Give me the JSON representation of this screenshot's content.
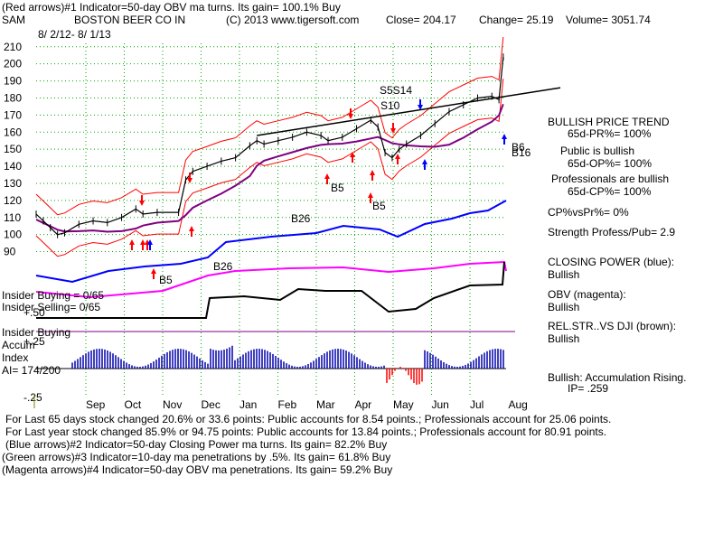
{
  "header": {
    "line1": "(Red arrows)#1 Indicator=50-day OBV ma turns.  Its gain= 100.1% Buy",
    "ticker": "SAM",
    "company": "BOSTON BEER CO IN",
    "copyright": "(C) 2013 www.tigersoft.com",
    "close": "Close=  204.17",
    "change": "Change= 25.19",
    "volume": "Volume= 3051.74",
    "date_range": "8/ 2/12- 8/ 1/13"
  },
  "right_panel": {
    "trend_title": "BULLISH PRICE TREND",
    "pr": "65d-PR%= 100%",
    "public_title": "Public is bullish",
    "op": "65d-OP%= 100%",
    "prof_title": "Professionals are bullish",
    "cp": "65d-CP%= 100%",
    "cp_vs_pr": "CP%vsPr%=  0%",
    "strength": "Strength Profess/Pub= 2.9",
    "cp_title": "CLOSING POWER (blue):",
    "cp_status": "Bullish",
    "obv_title": "OBV (magenta):",
    "obv_status": "Bullish",
    "rel_title": "REL.STR..VS DJI (brown):",
    "rel_status": "Bullish",
    "accum_title": "Bullish: Accumulation Rising.",
    "ip": "IP=  .259"
  },
  "insider": {
    "buying": "Insider Buying = 0/65",
    "selling": "Insider Selling= 0/65",
    "buying2": "Insider Buying",
    "accum": "Accum",
    "index": "Index",
    "ai": "AI= 174/200"
  },
  "chart_labels": {
    "s5s14": "S5S14",
    "s10": "S10",
    "b5a": "B5",
    "b5b": "B5",
    "b5c": "B5",
    "b26a": "B26",
    "b26b": "B26",
    "b6": "B6",
    "b16": "B16"
  },
  "footer": {
    "l1": "For Last 65 days stock changed  20.6% or  33.6 points:  Public accounts for  8.54 points.;  Professionals account for  25.06 points.",
    "l2": "For Last year stock changed  85.9% or  94.75 points:  Public accounts for  13.84 points.;  Professionals account for  80.91 points.",
    "l3": "(Blue arrows)#2 Indicator=50-day Closing Power ma turns.  Its gain= 82.2% Buy",
    "l4": "(Green arrows)#3 Indicator=10-day ma penetrations by .5%.  Its gain= 61.8% Buy",
    "l5": "(Magenta arrows)#4 Indicator=50-day OBV ma penetrations.  Its gain= 59.2% Buy"
  },
  "chart_data": {
    "type": "line",
    "x_axis_labels": [
      "Sep",
      "Oct",
      "Nov",
      "Dec",
      "Jan",
      "Feb",
      "Mar",
      "Apr",
      "May",
      "Jun",
      "Jul",
      "Aug"
    ],
    "y_axis_ticks": [
      210,
      200,
      190,
      180,
      170,
      160,
      150,
      140,
      130,
      120,
      110,
      100,
      90
    ],
    "accum_ticks": [
      "+.50",
      "+.25",
      "-.25"
    ],
    "ylim": [
      85,
      212
    ],
    "price_path": [
      [
        0,
        112
      ],
      [
        0.05,
        108
      ],
      [
        0.1,
        104
      ],
      [
        0.15,
        100
      ],
      [
        0.2,
        101
      ],
      [
        0.3,
        106
      ],
      [
        0.4,
        108
      ],
      [
        0.5,
        107
      ],
      [
        0.6,
        110
      ],
      [
        0.7,
        115
      ],
      [
        0.75,
        112
      ],
      [
        0.85,
        113
      ],
      [
        1.0,
        113
      ],
      [
        1.05,
        132
      ],
      [
        1.1,
        137
      ],
      [
        1.2,
        140
      ],
      [
        1.3,
        143
      ],
      [
        1.4,
        145
      ],
      [
        1.5,
        152
      ],
      [
        1.55,
        155
      ],
      [
        1.6,
        153
      ],
      [
        1.7,
        155
      ],
      [
        1.8,
        157
      ],
      [
        1.9,
        160
      ],
      [
        2.0,
        158
      ],
      [
        2.05,
        155
      ],
      [
        2.15,
        157
      ],
      [
        2.25,
        162
      ],
      [
        2.35,
        167
      ],
      [
        2.4,
        163
      ],
      [
        2.45,
        148
      ],
      [
        2.5,
        145
      ],
      [
        2.55,
        150
      ],
      [
        2.6,
        153
      ],
      [
        2.7,
        158
      ],
      [
        2.8,
        165
      ],
      [
        2.9,
        172
      ],
      [
        3.0,
        176
      ],
      [
        3.1,
        180
      ],
      [
        3.2,
        181
      ],
      [
        3.25,
        179
      ],
      [
        3.28,
        204
      ]
    ],
    "price_x_range": [
      0,
      3.3
    ],
    "series": [
      {
        "name": "CLOSING POWER (blue)",
        "color": "#0000ff"
      },
      {
        "name": "OBV (magenta)",
        "color": "#ff00ff"
      },
      {
        "name": "REL.STR..VS DJI (brown)",
        "color": "#000000"
      }
    ],
    "colors": {
      "bullish_band": "#ff0000",
      "ma50": "#800080",
      "grid": "#00aa00",
      "trendline": "#000000",
      "accum": "#0000aa",
      "accum_neg": "#ff0000"
    }
  }
}
